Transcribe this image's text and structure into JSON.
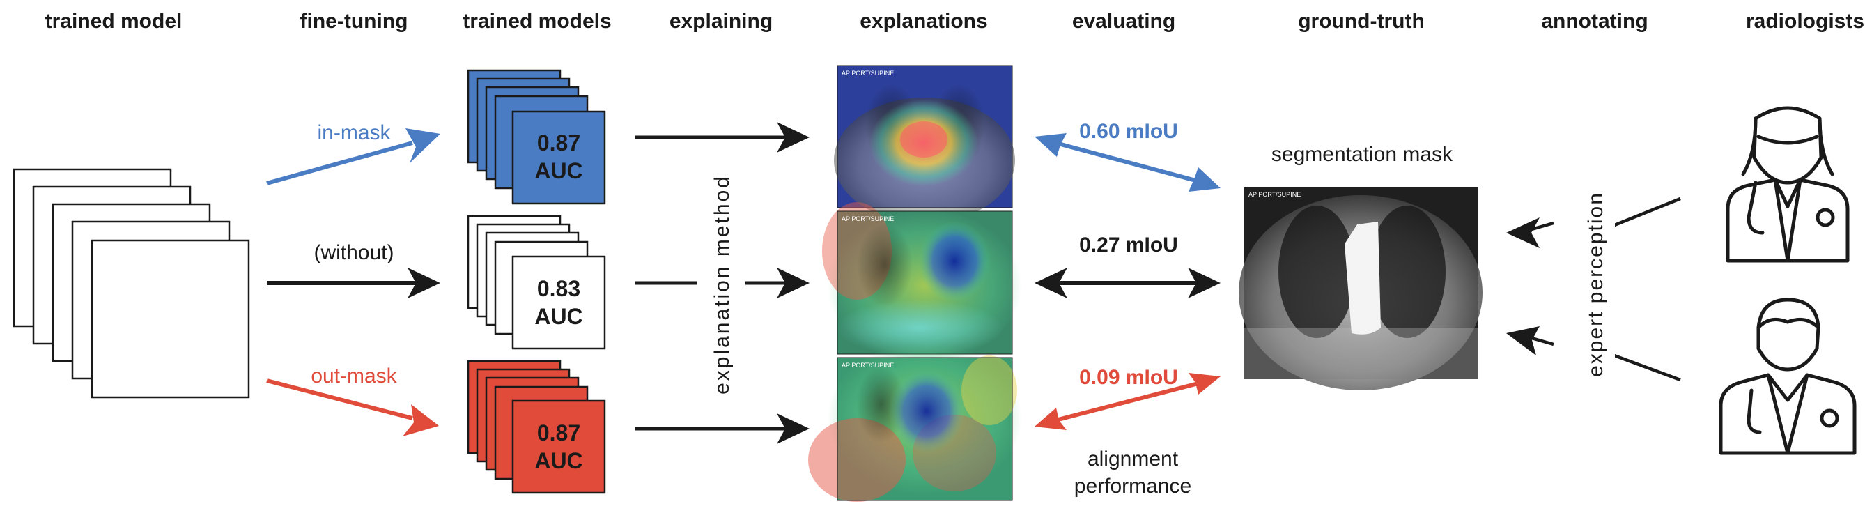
{
  "headers": {
    "trained_model": "trained model",
    "fine_tuning": "fine-tuning",
    "trained_models": "trained models",
    "explaining": "explaining",
    "explanations": "explanations",
    "evaluating": "evaluating",
    "ground_truth": "ground-truth",
    "annotating": "annotating",
    "radiologists": "radiologists"
  },
  "fine_tuning": {
    "in_mask": "in-mask",
    "without": "(without)",
    "out_mask": "out-mask"
  },
  "models": [
    {
      "auc_value": "0.87",
      "auc_label": "AUC"
    },
    {
      "auc_value": "0.83",
      "auc_label": "AUC"
    },
    {
      "auc_value": "0.87",
      "auc_label": "AUC"
    }
  ],
  "explanation_method": "explanation method",
  "xray_header": "AP PORT/SUPINE",
  "miou": {
    "in_mask": "0.60 mIoU",
    "without": "0.27 mIoU",
    "out_mask": "0.09 mIoU"
  },
  "alignment": {
    "line1": "alignment",
    "line2": "performance"
  },
  "segmentation_mask": "segmentation mask",
  "expert_perception": "expert perception",
  "colors": {
    "in_mask": "#4a7cc4",
    "out_mask": "#e04b3a",
    "neutral": "#1a1a1a"
  }
}
